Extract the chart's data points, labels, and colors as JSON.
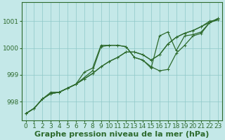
{
  "xlabel": "Graphe pression niveau de la mer (hPa)",
  "xlim": [
    -0.5,
    23.5
  ],
  "ylim": [
    997.3,
    1001.7
  ],
  "yticks": [
    998,
    999,
    1000,
    1001
  ],
  "xticks": [
    0,
    1,
    2,
    3,
    4,
    5,
    6,
    7,
    8,
    9,
    10,
    11,
    12,
    13,
    14,
    15,
    16,
    17,
    18,
    19,
    20,
    21,
    22,
    23
  ],
  "bg_color": "#c4e8e8",
  "grid_color": "#8ec8c8",
  "line_color": "#2d6a2d",
  "series": [
    [
      997.55,
      997.75,
      998.1,
      998.3,
      998.35,
      998.5,
      998.65,
      998.85,
      999.05,
      999.3,
      999.5,
      999.65,
      999.85,
      999.85,
      999.75,
      999.55,
      999.75,
      1000.15,
      1000.4,
      1000.55,
      1000.65,
      1000.8,
      1000.95,
      1001.05
    ],
    [
      997.55,
      997.75,
      998.1,
      998.3,
      998.35,
      998.5,
      998.65,
      998.85,
      999.05,
      999.3,
      999.5,
      999.65,
      999.85,
      999.85,
      999.75,
      999.55,
      999.75,
      1000.15,
      1000.4,
      1000.55,
      1000.65,
      1000.8,
      1001.0,
      1001.05
    ],
    [
      997.55,
      997.75,
      998.1,
      998.3,
      998.35,
      998.5,
      998.65,
      998.9,
      999.15,
      1000.05,
      1000.1,
      1000.1,
      1000.05,
      999.65,
      999.55,
      999.3,
      999.15,
      999.2,
      999.8,
      1000.1,
      1000.45,
      1000.55,
      1000.95,
      1001.1
    ],
    [
      997.55,
      997.75,
      998.1,
      998.35,
      998.35,
      998.5,
      998.65,
      999.1,
      999.25,
      1000.1,
      1000.1,
      1000.1,
      1000.05,
      999.65,
      999.55,
      999.25,
      1000.45,
      1000.6,
      999.9,
      1000.45,
      1000.5,
      1000.6,
      1000.95,
      1001.1
    ]
  ],
  "title_fontsize": 8,
  "tick_fontsize": 6.5,
  "line_width": 0.9,
  "marker_size": 2.5
}
